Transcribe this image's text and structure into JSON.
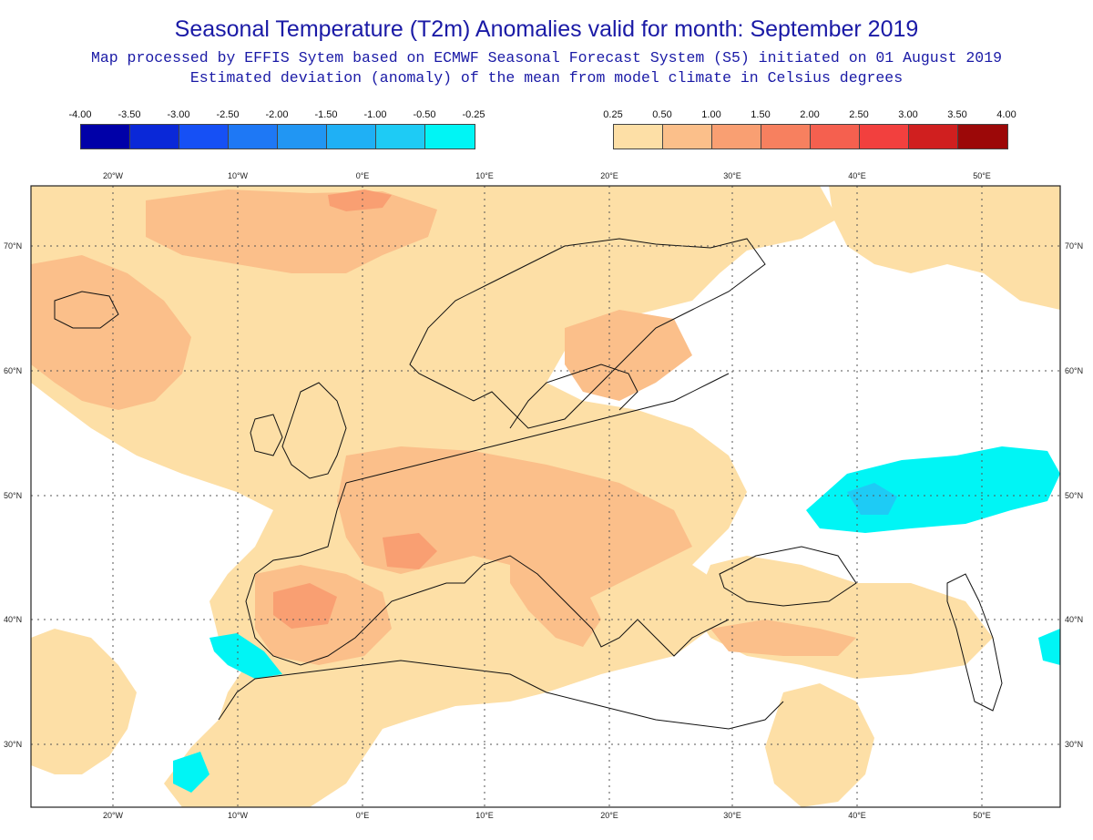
{
  "header": {
    "title": "Seasonal Temperature (T2m) Anomalies valid for month: September 2019",
    "subtitle1": "Map processed by EFFIS Sytem based on ECMWF Seasonal Forecast System (S5) initiated on 01 August 2019",
    "subtitle2": "Estimated deviation (anomaly) of the mean from model climate in Celsius degrees"
  },
  "legend_cold": {
    "labels": [
      "-4.00",
      "-3.50",
      "-3.00",
      "-2.50",
      "-2.00",
      "-1.50",
      "-1.00",
      "-0.50",
      "-0.25"
    ],
    "colors": [
      "#0000a8",
      "#0a28d8",
      "#1650f5",
      "#1e78f5",
      "#2196f3",
      "#1fb0f5",
      "#1ecbf5",
      "#00f5f5"
    ]
  },
  "legend_warm": {
    "labels": [
      "0.25",
      "0.50",
      "1.00",
      "1.50",
      "2.00",
      "2.50",
      "3.00",
      "3.50",
      "4.00"
    ],
    "colors": [
      "#fddfa6",
      "#fbbf8a",
      "#f99f72",
      "#f7805f",
      "#f5604f",
      "#f2403e",
      "#d01f1f",
      "#9c0808"
    ]
  },
  "axes": {
    "lon_labels": [
      "20°W",
      "10°W",
      "0°E",
      "10°E",
      "20°E",
      "30°E",
      "40°E",
      "50°E"
    ],
    "lat_labels": [
      "70°N",
      "60°N",
      "50°N",
      "40°N",
      "30°N"
    ]
  },
  "map_colors": {
    "ocean_land_no_anomaly": "#ffffff",
    "anomaly_0_25": "#fddfa6",
    "anomaly_0_50": "#fbbf8a",
    "anomaly_1_00": "#f99f72",
    "anomaly_cold": "#00f5f5",
    "anomaly_cold_2": "#1ecbf5",
    "coastline": "#111111"
  }
}
